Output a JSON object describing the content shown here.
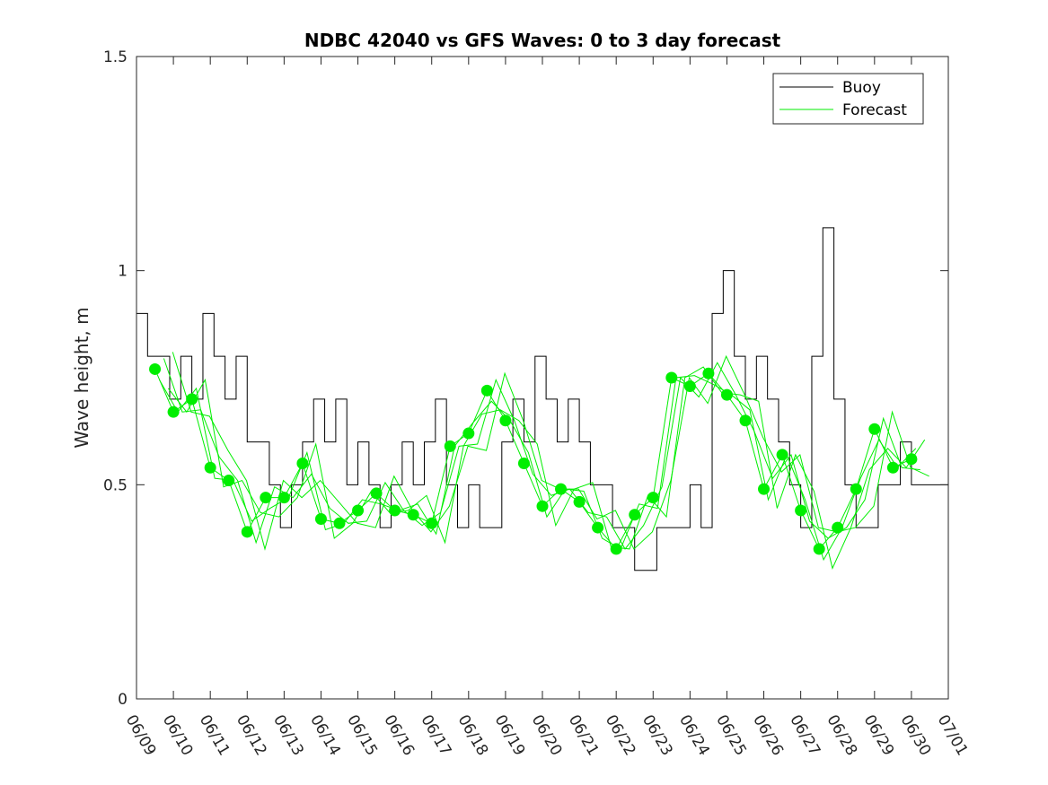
{
  "chart_data": {
    "type": "line",
    "title": "NDBC 42040 vs GFS Waves: 0 to 3 day forecast",
    "xlabel": "",
    "ylabel": "Wave height, m",
    "xlim": [
      "06/09",
      "07/01"
    ],
    "ylim": [
      0,
      1.5
    ],
    "x_ticks": [
      "06/09",
      "06/10",
      "06/11",
      "06/12",
      "06/13",
      "06/14",
      "06/15",
      "06/16",
      "06/17",
      "06/18",
      "06/19",
      "06/20",
      "06/21",
      "06/22",
      "06/23",
      "06/24",
      "06/25",
      "06/26",
      "06/27",
      "06/28",
      "06/29",
      "06/30",
      "07/01"
    ],
    "y_ticks": [
      "0",
      "0.5",
      "1",
      "1.5"
    ],
    "legend": {
      "placement": "top-right",
      "entries": [
        "Buoy",
        "Forecast"
      ]
    },
    "colors": {
      "buoy": "#000000",
      "forecast": "#00ee00"
    },
    "series": [
      {
        "name": "Buoy",
        "day": [
          0.0,
          0.3,
          0.6,
          0.9,
          1.2,
          1.5,
          1.8,
          2.1,
          2.4,
          2.7,
          3.0,
          3.3,
          3.6,
          3.9,
          4.2,
          4.5,
          4.8,
          5.1,
          5.4,
          5.7,
          6.0,
          6.3,
          6.6,
          6.9,
          7.2,
          7.5,
          7.8,
          8.1,
          8.4,
          8.7,
          9.0,
          9.3,
          9.6,
          9.9,
          10.2,
          10.5,
          10.8,
          11.1,
          11.4,
          11.7,
          12.0,
          12.3,
          12.6,
          12.9,
          13.2,
          13.5,
          13.8,
          14.1,
          14.4,
          14.7,
          15.0,
          15.3,
          15.6,
          15.9,
          16.2,
          16.5,
          16.8,
          17.1,
          17.4,
          17.7,
          18.0,
          18.3,
          18.6,
          18.9,
          19.2,
          19.5,
          19.8,
          20.1,
          20.4,
          20.7,
          21.0,
          21.3,
          21.6,
          21.9,
          22.0
        ],
        "values": [
          0.9,
          0.8,
          0.8,
          0.7,
          0.8,
          0.7,
          0.9,
          0.8,
          0.7,
          0.8,
          0.6,
          0.6,
          0.5,
          0.4,
          0.5,
          0.6,
          0.7,
          0.6,
          0.7,
          0.5,
          0.6,
          0.5,
          0.4,
          0.5,
          0.6,
          0.5,
          0.6,
          0.7,
          0.5,
          0.4,
          0.5,
          0.4,
          0.4,
          0.6,
          0.7,
          0.6,
          0.8,
          0.7,
          0.6,
          0.7,
          0.6,
          0.5,
          0.5,
          0.4,
          0.4,
          0.3,
          0.3,
          0.4,
          0.4,
          0.4,
          0.5,
          0.4,
          0.9,
          1.0,
          0.8,
          0.7,
          0.8,
          0.7,
          0.6,
          0.5,
          0.4,
          0.8,
          1.1,
          0.7,
          0.5,
          0.4,
          0.4,
          0.5,
          0.5,
          0.6,
          0.5,
          0.5,
          0.5,
          0.5,
          0.5
        ]
      },
      {
        "name": "Forecast",
        "day": [
          0.5,
          1.0,
          1.5,
          2.0,
          2.5,
          3.0,
          3.5,
          4.0,
          4.5,
          5.0,
          5.5,
          6.0,
          6.5,
          7.0,
          7.5,
          8.0,
          8.5,
          9.0,
          9.5,
          10.0,
          10.5,
          11.0,
          11.5,
          12.0,
          12.5,
          13.0,
          13.5,
          14.0,
          14.5,
          15.0,
          15.5,
          16.0,
          16.5,
          17.0,
          17.5,
          18.0,
          18.5,
          19.0,
          19.5,
          20.0,
          20.5,
          21.0
        ],
        "values": [
          0.77,
          0.67,
          0.7,
          0.54,
          0.51,
          0.39,
          0.47,
          0.47,
          0.55,
          0.42,
          0.41,
          0.44,
          0.48,
          0.44,
          0.43,
          0.41,
          0.59,
          0.62,
          0.72,
          0.65,
          0.55,
          0.45,
          0.49,
          0.46,
          0.4,
          0.35,
          0.43,
          0.47,
          0.75,
          0.73,
          0.76,
          0.71,
          0.65,
          0.49,
          0.57,
          0.44,
          0.35,
          0.4,
          0.49,
          0.63,
          0.54,
          0.56
        ]
      }
    ]
  }
}
